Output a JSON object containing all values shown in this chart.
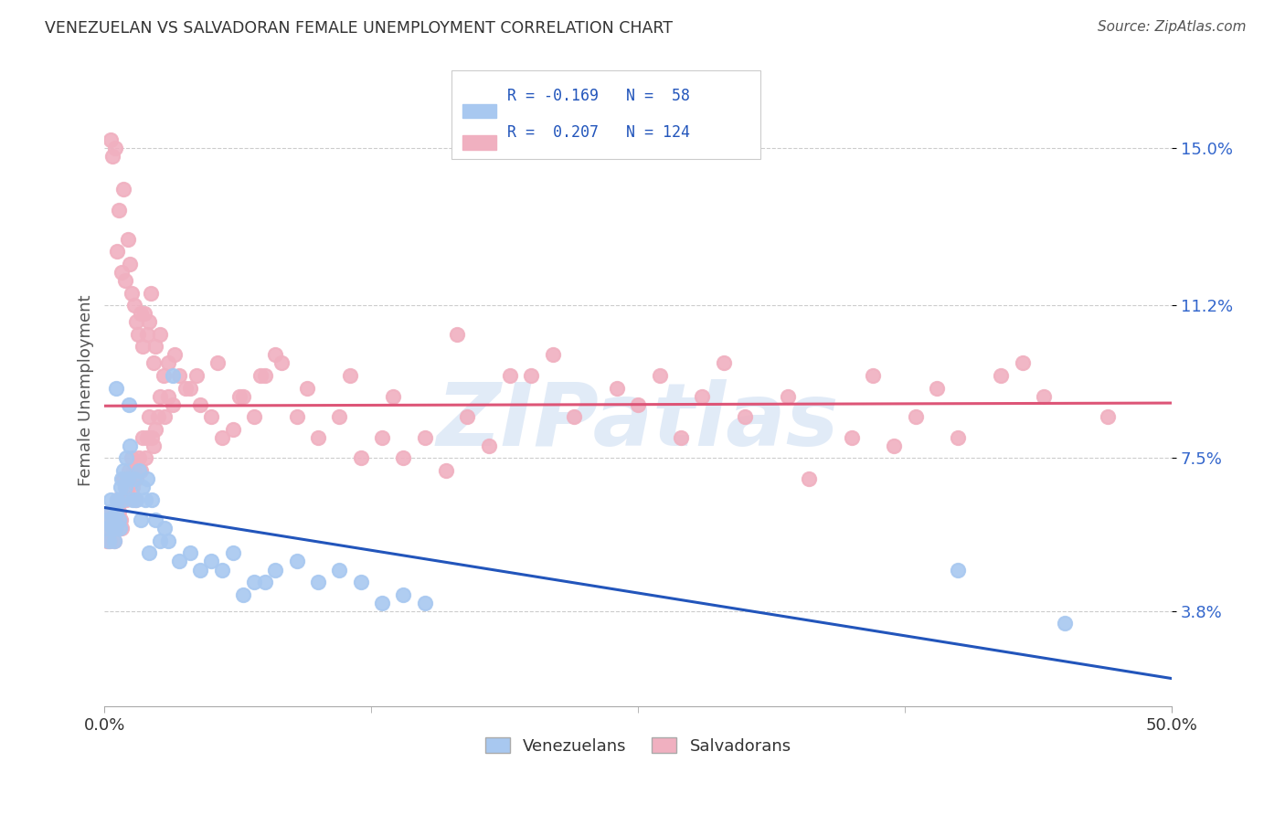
{
  "title": "VENEZUELAN VS SALVADORAN FEMALE UNEMPLOYMENT CORRELATION CHART",
  "source": "Source: ZipAtlas.com",
  "ylabel": "Female Unemployment",
  "yticks": [
    3.8,
    7.5,
    11.2,
    15.0
  ],
  "ytick_labels": [
    "3.8%",
    "7.5%",
    "11.2%",
    "15.0%"
  ],
  "xmin": 0.0,
  "xmax": 50.0,
  "ymin": 1.5,
  "ymax": 16.8,
  "venezuelan_color": "#a8c8f0",
  "salvadoran_color": "#f0b0c0",
  "venezuelan_line_color": "#2255bb",
  "salvadoran_line_color": "#dd5577",
  "legend_label_venezuelans": "Venezuelans",
  "legend_label_salvadorans": "Salvadorans",
  "watermark": "ZIPatlas",
  "venezuelan_R": -0.169,
  "venezuelan_N": 58,
  "salvadoran_R": 0.207,
  "salvadoran_N": 124,
  "venezuelan_scatter_x": [
    0.1,
    0.15,
    0.2,
    0.25,
    0.3,
    0.35,
    0.4,
    0.45,
    0.5,
    0.55,
    0.6,
    0.65,
    0.7,
    0.75,
    0.8,
    0.85,
    0.9,
    0.95,
    1.0,
    1.1,
    1.2,
    1.3,
    1.4,
    1.5,
    1.6,
    1.7,
    1.8,
    1.9,
    2.0,
    2.2,
    2.4,
    2.6,
    2.8,
    3.0,
    3.5,
    4.0,
    4.5,
    5.0,
    5.5,
    6.0,
    7.0,
    8.0,
    9.0,
    10.0,
    11.0,
    12.0,
    13.0,
    14.0,
    15.0,
    3.2,
    2.1,
    1.15,
    0.55,
    0.45,
    6.5,
    7.5,
    40.0,
    45.0
  ],
  "venezuelan_scatter_y": [
    5.8,
    6.0,
    5.5,
    6.2,
    6.5,
    5.8,
    6.0,
    5.5,
    5.8,
    6.2,
    6.5,
    6.0,
    5.8,
    6.8,
    7.0,
    6.5,
    7.2,
    6.8,
    7.5,
    7.0,
    7.8,
    6.5,
    7.0,
    6.5,
    7.2,
    6.0,
    6.8,
    6.5,
    7.0,
    6.5,
    6.0,
    5.5,
    5.8,
    5.5,
    5.0,
    5.2,
    4.8,
    5.0,
    4.8,
    5.2,
    4.5,
    4.8,
    5.0,
    4.5,
    4.8,
    4.5,
    4.0,
    4.2,
    4.0,
    9.5,
    5.2,
    8.8,
    9.2,
    6.0,
    4.2,
    4.5,
    4.8,
    3.5
  ],
  "salvadoran_scatter_x": [
    0.1,
    0.15,
    0.2,
    0.25,
    0.3,
    0.35,
    0.4,
    0.45,
    0.5,
    0.55,
    0.6,
    0.65,
    0.7,
    0.75,
    0.8,
    0.85,
    0.9,
    0.95,
    1.0,
    1.05,
    1.1,
    1.15,
    1.2,
    1.25,
    1.3,
    1.35,
    1.4,
    1.45,
    1.5,
    1.6,
    1.7,
    1.8,
    1.9,
    2.0,
    2.1,
    2.2,
    2.3,
    2.4,
    2.5,
    2.6,
    2.8,
    3.0,
    3.2,
    3.5,
    4.0,
    4.5,
    5.0,
    5.5,
    6.0,
    6.5,
    7.0,
    7.5,
    8.0,
    9.0,
    10.0,
    11.0,
    12.0,
    13.0,
    14.0,
    15.0,
    16.0,
    17.0,
    18.0,
    20.0,
    22.0,
    24.0,
    25.0,
    27.0,
    28.0,
    30.0,
    33.0,
    35.0,
    37.0,
    38.0,
    40.0,
    42.0,
    44.0,
    47.0,
    0.28,
    0.38,
    0.48,
    0.58,
    0.68,
    0.78,
    0.88,
    0.98,
    1.08,
    1.18,
    1.28,
    1.38,
    1.48,
    1.58,
    1.68,
    1.78,
    1.88,
    1.98,
    2.08,
    2.18,
    2.28,
    2.38,
    2.58,
    2.78,
    2.98,
    3.3,
    3.8,
    4.3,
    5.3,
    6.3,
    7.3,
    8.3,
    9.5,
    11.5,
    13.5,
    16.5,
    19.0,
    21.0,
    26.0,
    29.0,
    32.0,
    36.0,
    39.0,
    43.0
  ],
  "salvadoran_scatter_y": [
    5.5,
    5.8,
    6.0,
    5.5,
    6.2,
    5.8,
    6.0,
    5.5,
    5.8,
    6.0,
    6.5,
    6.2,
    6.5,
    6.0,
    5.8,
    6.5,
    7.0,
    6.8,
    6.5,
    7.0,
    6.8,
    7.2,
    7.0,
    7.5,
    6.8,
    7.2,
    7.0,
    6.5,
    7.0,
    7.5,
    7.2,
    8.0,
    7.5,
    8.0,
    8.5,
    8.0,
    7.8,
    8.2,
    8.5,
    9.0,
    8.5,
    9.0,
    8.8,
    9.5,
    9.2,
    8.8,
    8.5,
    8.0,
    8.2,
    9.0,
    8.5,
    9.5,
    10.0,
    8.5,
    8.0,
    8.5,
    7.5,
    8.0,
    7.5,
    8.0,
    7.2,
    8.5,
    7.8,
    9.5,
    8.5,
    9.2,
    8.8,
    8.0,
    9.0,
    8.5,
    7.0,
    8.0,
    7.8,
    8.5,
    8.0,
    9.5,
    9.0,
    8.5,
    15.2,
    14.8,
    15.0,
    12.5,
    13.5,
    12.0,
    14.0,
    11.8,
    12.8,
    12.2,
    11.5,
    11.2,
    10.8,
    10.5,
    11.0,
    10.2,
    11.0,
    10.5,
    10.8,
    11.5,
    9.8,
    10.2,
    10.5,
    9.5,
    9.8,
    10.0,
    9.2,
    9.5,
    9.8,
    9.0,
    9.5,
    9.8,
    9.2,
    9.5,
    9.0,
    10.5,
    9.5,
    10.0,
    9.5,
    9.8,
    9.0,
    9.5,
    9.2,
    9.8
  ]
}
